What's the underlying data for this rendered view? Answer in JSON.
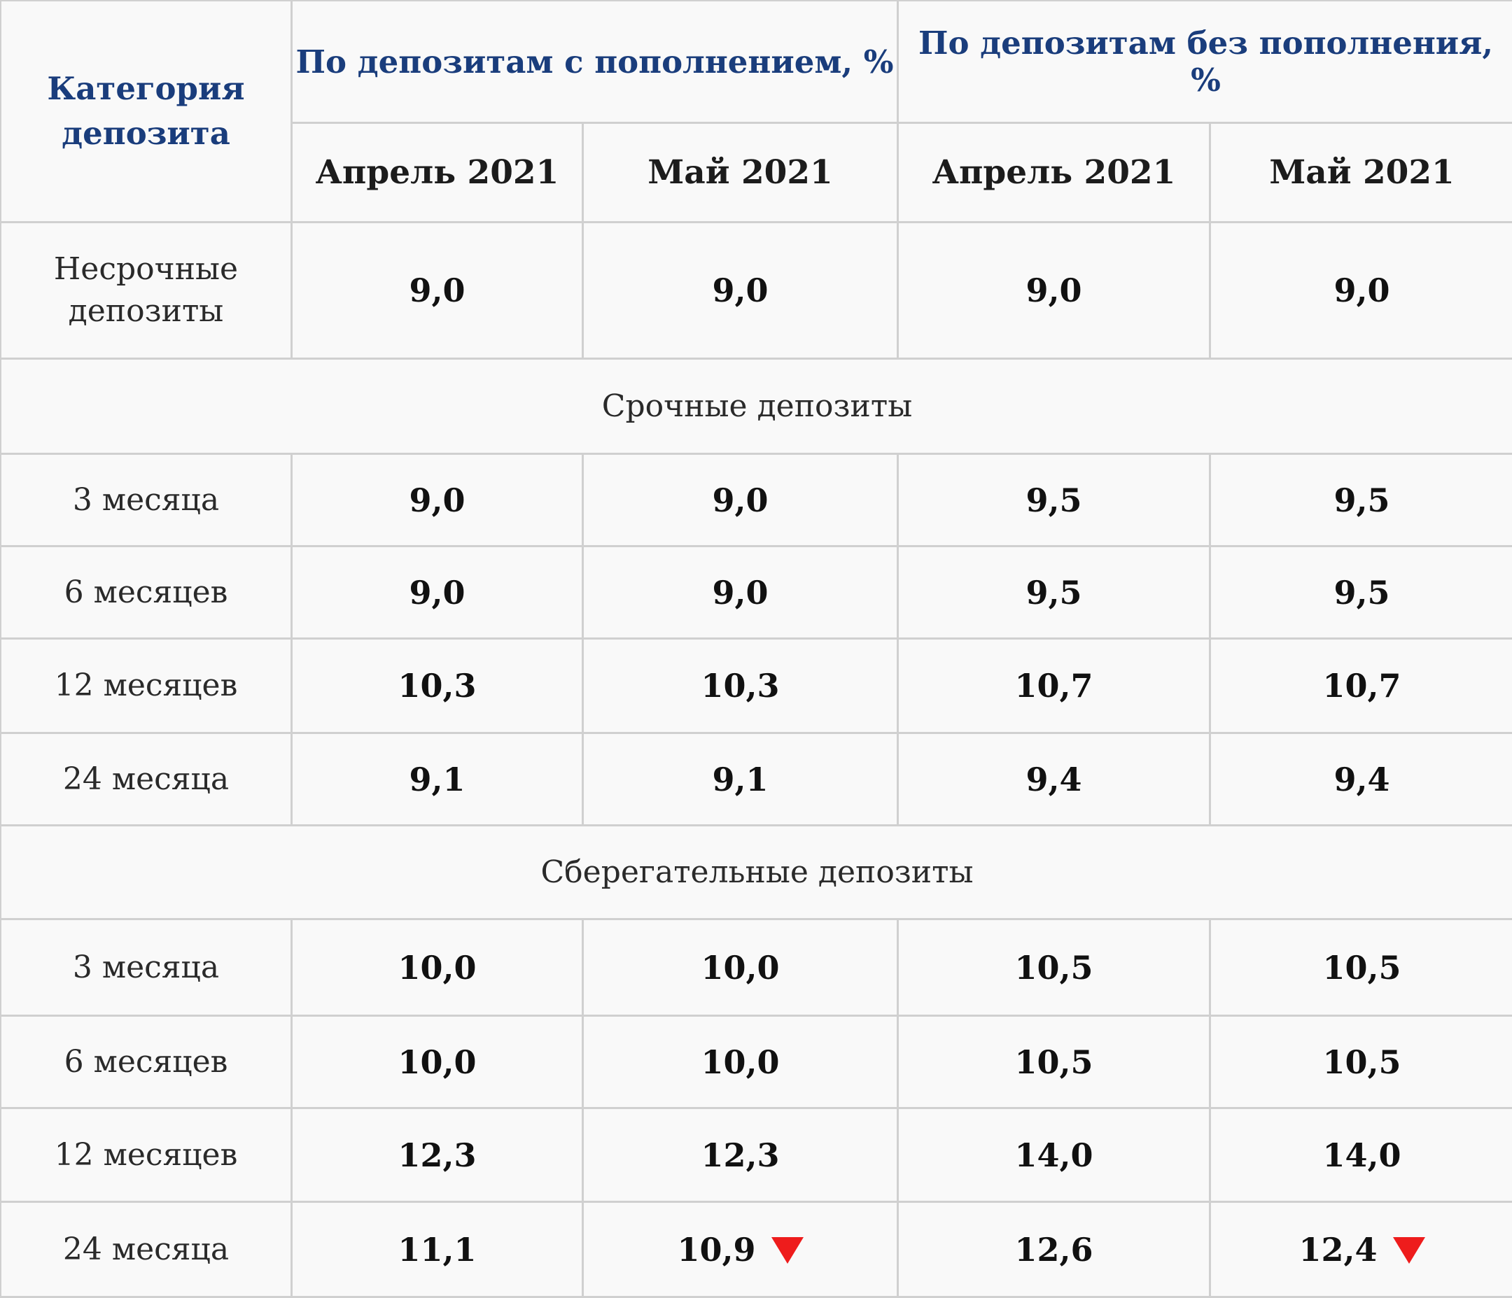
{
  "header": {
    "category": "Категория депозита",
    "group_with_topup": "По депозитам с пополнением, %",
    "group_without_topup": "По депозитам без пополнения, %",
    "months": [
      "Апрель 2021",
      "Май 2021",
      "Апрель 2021",
      "Май 2021"
    ]
  },
  "demand": {
    "label": "Несрочные депозиты",
    "values": [
      "9,0",
      "9,0",
      "9,0",
      "9,0"
    ]
  },
  "term_section": {
    "label": "Срочные депозиты",
    "rows": [
      {
        "label": "3 месяца",
        "values": [
          "9,0",
          "9,0",
          "9,5",
          "9,5"
        ]
      },
      {
        "label": "6 месяцев",
        "values": [
          "9,0",
          "9,0",
          "9,5",
          "9,5"
        ]
      },
      {
        "label": "12 месяцев",
        "values": [
          "10,3",
          "10,3",
          "10,7",
          "10,7"
        ]
      },
      {
        "label": "24 месяца",
        "values": [
          "9,1",
          "9,1",
          "9,4",
          "9,4"
        ]
      }
    ]
  },
  "savings_section": {
    "label": "Сберегательные депозиты",
    "rows": [
      {
        "label": "3 месяца",
        "values": [
          "10,0",
          "10,0",
          "10,5",
          "10,5"
        ]
      },
      {
        "label": "6 месяцев",
        "values": [
          "10,0",
          "10,0",
          "10,5",
          "10,5"
        ]
      },
      {
        "label": "12 месяцев",
        "values": [
          "12,3",
          "12,3",
          "14,0",
          "14,0"
        ]
      },
      {
        "label": "24 месяца",
        "values": [
          "11,1",
          "10,9",
          "12,6",
          "12,4"
        ],
        "decrease_flags": [
          false,
          true,
          false,
          true
        ]
      }
    ]
  },
  "colors": {
    "header_text": "#1a3d7c",
    "grid": "#d0d0d0",
    "background": "#f9f9f9",
    "decrease_arrow": "#ee1c1c"
  },
  "icons": {
    "decrease": "red-down-triangle-icon"
  }
}
